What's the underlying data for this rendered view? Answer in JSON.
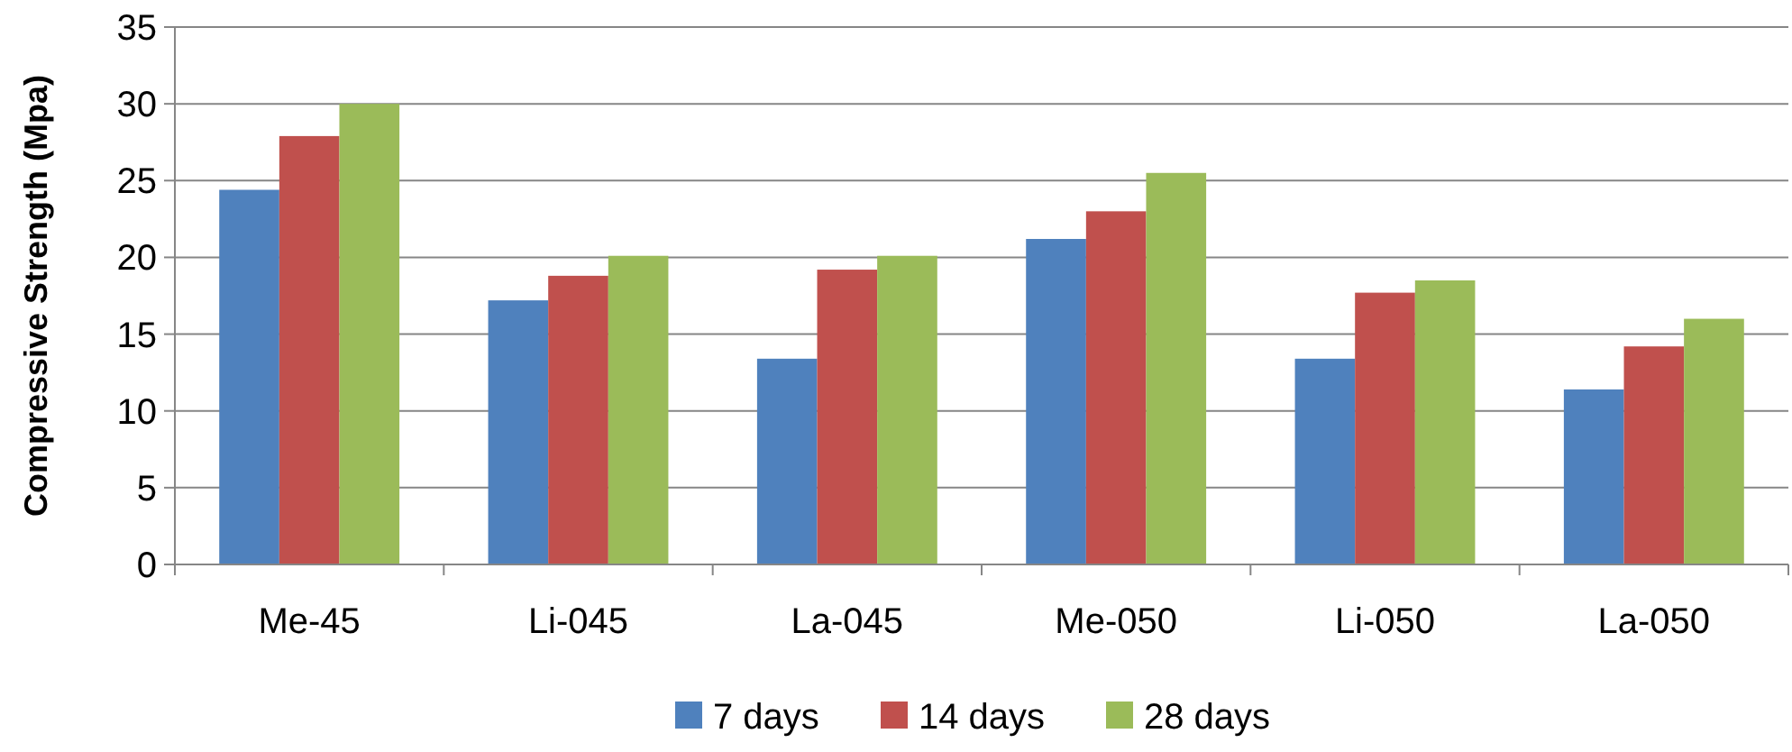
{
  "chart_data": {
    "type": "bar",
    "ylabel": "Compressive Strength (Mpa)",
    "categories": [
      "Me-45",
      "Li-045",
      "La-045",
      "Me-050",
      "Li-050",
      "La-050"
    ],
    "series": [
      {
        "name": "7 days",
        "color": "#4f81bd",
        "values": [
          24.4,
          17.2,
          13.4,
          21.2,
          13.4,
          11.4
        ]
      },
      {
        "name": "14 days",
        "color": "#c0504d",
        "values": [
          27.9,
          18.8,
          19.2,
          23.0,
          17.7,
          14.2
        ]
      },
      {
        "name": "28 days",
        "color": "#9bbb59",
        "values": [
          30.0,
          20.1,
          20.1,
          25.5,
          18.5,
          16.0
        ]
      }
    ],
    "ylim": [
      0,
      35
    ],
    "yticks": [
      0,
      5,
      10,
      15,
      20,
      25,
      30,
      35
    ],
    "grid": "y",
    "legend": "bottom"
  }
}
